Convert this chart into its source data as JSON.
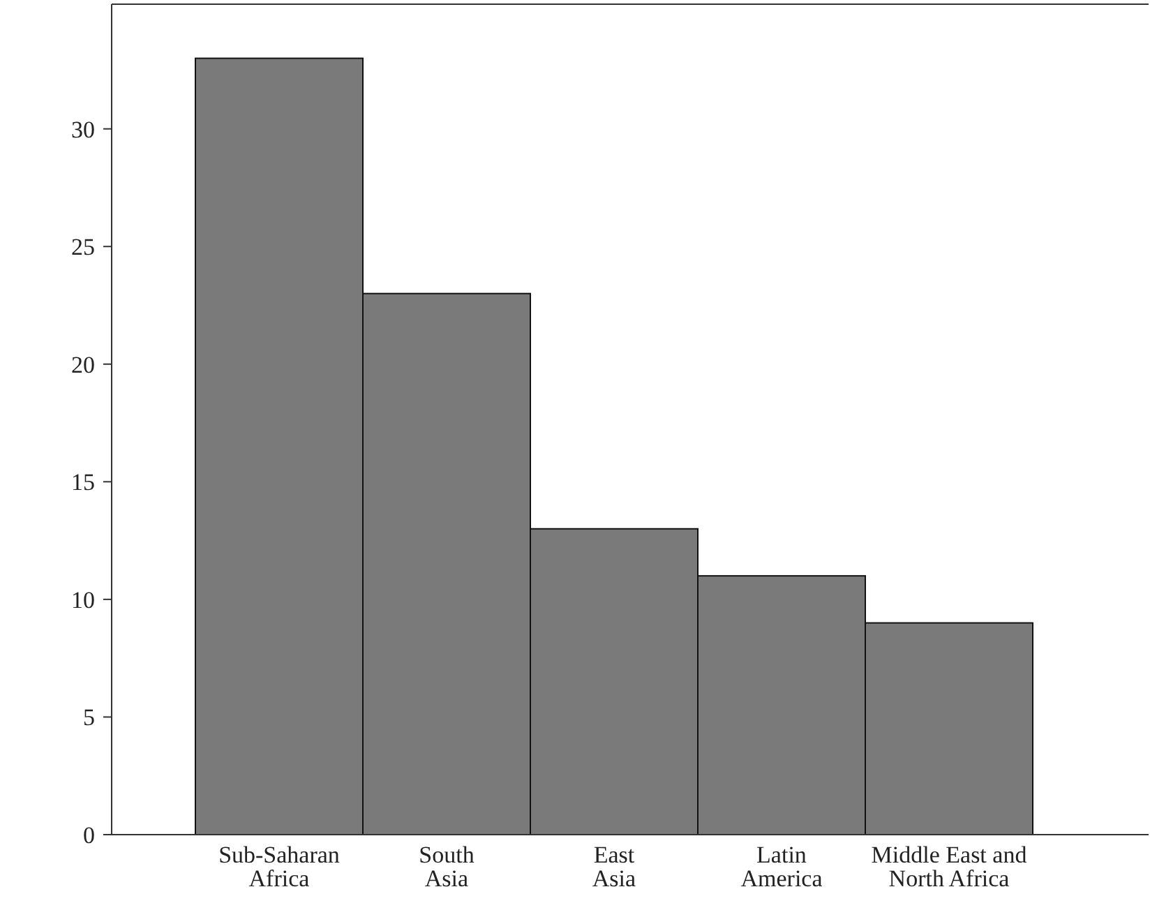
{
  "chart_data": {
    "type": "bar",
    "categories": [
      "Sub-Saharan\nAfrica",
      "South\nAsia",
      "East\nAsia",
      "Latin\nAmerica",
      "Middle East and\nNorth Africa"
    ],
    "values": [
      33,
      23,
      13,
      11,
      9
    ],
    "color": "#7a7a7a",
    "ylim": [
      0,
      35.3
    ],
    "yticks": [
      0,
      5,
      10,
      15,
      20,
      25,
      30
    ],
    "grid": false
  }
}
